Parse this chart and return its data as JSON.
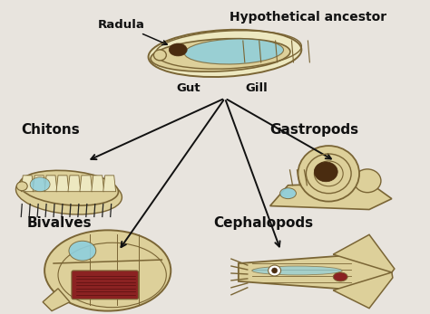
{
  "bg_color": "#e8e4de",
  "title": "Hypothetical ancestor",
  "labels": {
    "radula": "Radula",
    "gut": "Gut",
    "gill": "Gill",
    "chitons": "Chitons",
    "gastropods": "Gastropods",
    "bivalves": "Bivalves",
    "cephalopods": "Cephalopods"
  },
  "arrow_color": "#111111",
  "text_color": "#111111",
  "body_color": "#ddd09a",
  "body_light": "#ede8c0",
  "body_edge": "#7a6535",
  "blue_color": "#8ecfde",
  "dark_color": "#4a2c10",
  "red_color": "#8b2222",
  "label_fontsize": 9.5,
  "title_fontsize": 10
}
